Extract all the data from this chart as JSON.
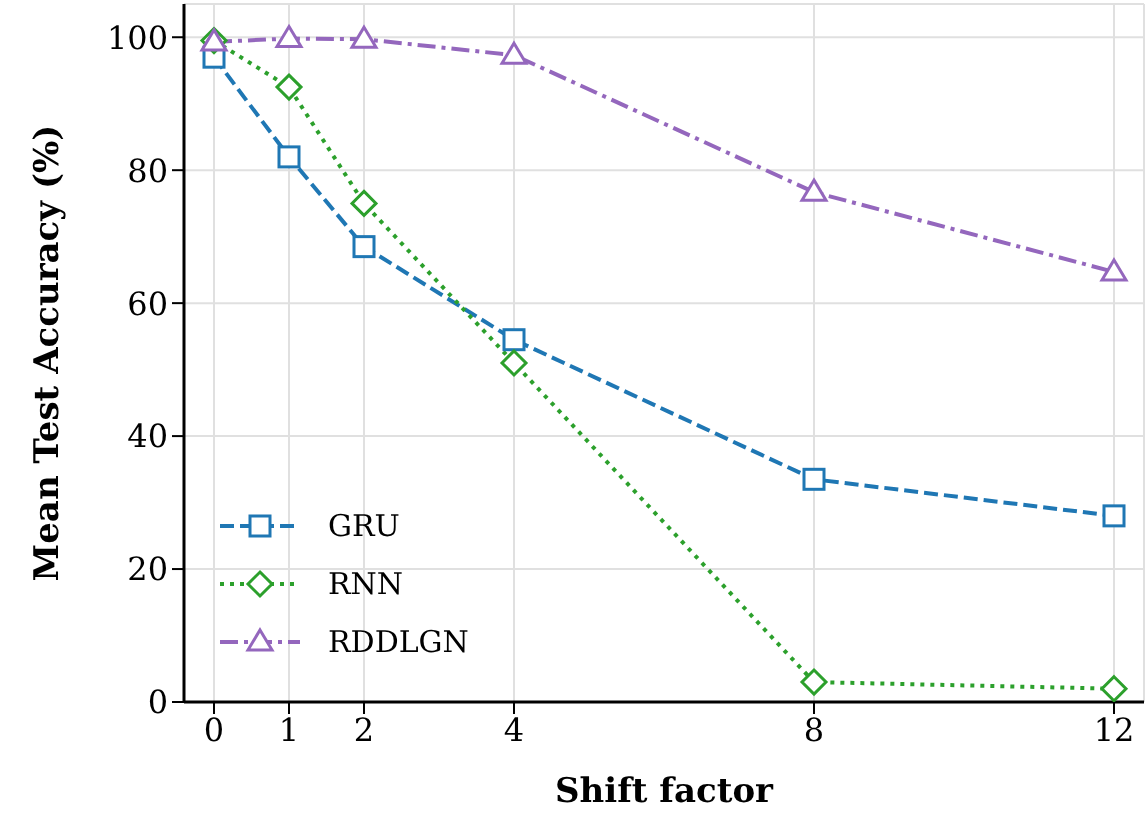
{
  "chart_data": {
    "type": "line",
    "xlabel": "Shift factor",
    "ylabel": "Mean Test Accuracy (%)",
    "x": [
      0,
      1,
      2,
      4,
      8,
      12
    ],
    "series": [
      {
        "name": "GRU",
        "color": "#1f77b4",
        "marker": "square",
        "line_style": "dashed",
        "values": [
          97,
          82,
          68.5,
          54.5,
          33.5,
          28
        ]
      },
      {
        "name": "RNN",
        "color": "#2ca02c",
        "marker": "diamond",
        "line_style": "dotted",
        "values": [
          99.5,
          92.5,
          75,
          51,
          3,
          2
        ]
      },
      {
        "name": "RDDLGN",
        "color": "#9467bd",
        "marker": "triangle",
        "line_style": "dashdot",
        "values": [
          99.3,
          99.8,
          99.7,
          97.3,
          76.7,
          64.7
        ]
      }
    ],
    "xlim": [
      -0.4,
      12.4
    ],
    "xticks": [
      0,
      1,
      2,
      4,
      8,
      12
    ],
    "ylim": [
      0,
      105
    ],
    "yticks": [
      0,
      20,
      40,
      60,
      80,
      100
    ],
    "grid": true,
    "legend": "bottom left"
  }
}
